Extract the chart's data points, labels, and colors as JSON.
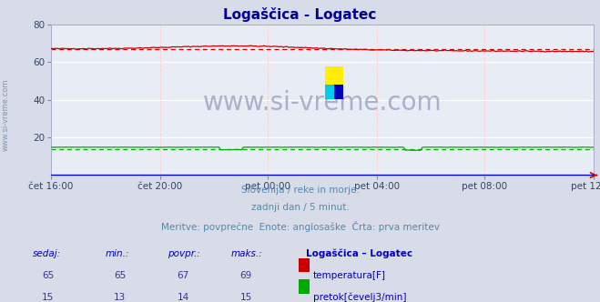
{
  "title": "Logaščica - Logatec",
  "title_color": "#000099",
  "bg_color": "#d8dce8",
  "plot_bg_color": "#e8ecf4",
  "grid_color_h": "#ffffff",
  "grid_color_v": "#ffcccc",
  "x_labels": [
    "čet 16:00",
    "čet 20:00",
    "pet 00:00",
    "pet 04:00",
    "pet 08:00",
    "pet 12:00"
  ],
  "x_ticks_norm": [
    0.0,
    0.2,
    0.4,
    0.6,
    0.8,
    1.0
  ],
  "total_points": 289,
  "ylim": [
    0,
    80
  ],
  "yticks": [
    20,
    40,
    60,
    80
  ],
  "temp_avg": 67,
  "flow_avg": 14,
  "temp_color": "#cc0000",
  "flow_color": "#00aa00",
  "height_color": "#0000cc",
  "subtitle_lines": [
    "Slovenija / reke in morje.",
    "zadnji dan / 5 minut.",
    "Meritve: povprečne  Enote: anglosaške  Črta: prva meritev"
  ],
  "subtitle_color": "#5588aa",
  "table_header_color": "#0000bb",
  "table_value_color": "#333399",
  "watermark_text": "www.si-vreme.com",
  "watermark_color": "#aab0cc",
  "sidebar_text": "www.si-vreme.com",
  "sidebar_color": "#7799bb"
}
